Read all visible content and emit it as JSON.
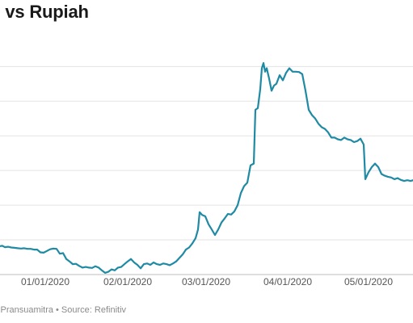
{
  "title": "S vs Rupiah",
  "footer": "s Pransuamitra • Source: Refinitiv",
  "colors": {
    "line": "#1f8aa3",
    "grid": "#e3e3e3",
    "baseline": "#bdbdbd"
  },
  "chart_data": {
    "type": "line",
    "title": "S vs Rupiah",
    "xlabel": "",
    "ylabel": "",
    "grid": true,
    "x_ticks": [
      "01/01/2020",
      "02/01/2020",
      "03/01/2020",
      "04/01/2020",
      "05/01/2020"
    ],
    "ylim": [
      0,
      6.8
    ],
    "series": [
      {
        "values": [
          [
            -10,
            0.85
          ],
          [
            0,
            0.82
          ],
          [
            3,
            0.83
          ],
          [
            6,
            0.79
          ],
          [
            10,
            0.8
          ],
          [
            14,
            0.78
          ],
          [
            18,
            0.77
          ],
          [
            22,
            0.76
          ],
          [
            26,
            0.75
          ],
          [
            30,
            0.76
          ],
          [
            34,
            0.74
          ],
          [
            38,
            0.74
          ],
          [
            42,
            0.72
          ],
          [
            46,
            0.72
          ],
          [
            50,
            0.64
          ],
          [
            54,
            0.63
          ],
          [
            58,
            0.68
          ],
          [
            62,
            0.73
          ],
          [
            66,
            0.75
          ],
          [
            70,
            0.74
          ],
          [
            74,
            0.6
          ],
          [
            78,
            0.62
          ],
          [
            82,
            0.45
          ],
          [
            86,
            0.38
          ],
          [
            90,
            0.3
          ],
          [
            94,
            0.31
          ],
          [
            98,
            0.25
          ],
          [
            102,
            0.2
          ],
          [
            106,
            0.22
          ],
          [
            110,
            0.2
          ],
          [
            114,
            0.19
          ],
          [
            118,
            0.24
          ],
          [
            122,
            0.2
          ],
          [
            126,
            0.12
          ],
          [
            130,
            0.05
          ],
          [
            134,
            0.08
          ],
          [
            138,
            0.15
          ],
          [
            142,
            0.12
          ],
          [
            146,
            0.2
          ],
          [
            150,
            0.22
          ],
          [
            154,
            0.3
          ],
          [
            158,
            0.38
          ],
          [
            162,
            0.45
          ],
          [
            166,
            0.35
          ],
          [
            170,
            0.28
          ],
          [
            174,
            0.18
          ],
          [
            178,
            0.3
          ],
          [
            182,
            0.32
          ],
          [
            186,
            0.28
          ],
          [
            190,
            0.35
          ],
          [
            194,
            0.3
          ],
          [
            198,
            0.28
          ],
          [
            202,
            0.32
          ],
          [
            206,
            0.3
          ],
          [
            210,
            0.27
          ],
          [
            214,
            0.32
          ],
          [
            218,
            0.38
          ],
          [
            222,
            0.48
          ],
          [
            226,
            0.58
          ],
          [
            230,
            0.72
          ],
          [
            234,
            0.78
          ],
          [
            238,
            0.9
          ],
          [
            242,
            1.05
          ],
          [
            245,
            1.3
          ],
          [
            247,
            1.8
          ],
          [
            250,
            1.72
          ],
          [
            254,
            1.68
          ],
          [
            258,
            1.45
          ],
          [
            262,
            1.3
          ],
          [
            266,
            1.14
          ],
          [
            270,
            1.3
          ],
          [
            274,
            1.5
          ],
          [
            278,
            1.62
          ],
          [
            282,
            1.75
          ],
          [
            286,
            1.73
          ],
          [
            290,
            1.82
          ],
          [
            294,
            2.0
          ],
          [
            298,
            2.35
          ],
          [
            302,
            2.55
          ],
          [
            306,
            2.65
          ],
          [
            310,
            3.15
          ],
          [
            314,
            3.2
          ],
          [
            316,
            4.75
          ],
          [
            319,
            4.8
          ],
          [
            322,
            5.35
          ],
          [
            324,
            5.95
          ],
          [
            326,
            6.1
          ],
          [
            328,
            5.85
          ],
          [
            330,
            5.95
          ],
          [
            333,
            5.65
          ],
          [
            336,
            5.3
          ],
          [
            339,
            5.45
          ],
          [
            342,
            5.5
          ],
          [
            346,
            5.75
          ],
          [
            350,
            5.6
          ],
          [
            354,
            5.82
          ],
          [
            358,
            5.95
          ],
          [
            362,
            5.85
          ],
          [
            366,
            5.85
          ],
          [
            370,
            5.84
          ],
          [
            374,
            5.78
          ],
          [
            378,
            5.3
          ],
          [
            382,
            4.75
          ],
          [
            386,
            4.6
          ],
          [
            390,
            4.5
          ],
          [
            394,
            4.35
          ],
          [
            398,
            4.25
          ],
          [
            402,
            4.2
          ],
          [
            406,
            4.1
          ],
          [
            410,
            3.95
          ],
          [
            414,
            3.95
          ],
          [
            418,
            3.9
          ],
          [
            422,
            3.88
          ],
          [
            426,
            3.95
          ],
          [
            430,
            3.9
          ],
          [
            434,
            3.88
          ],
          [
            438,
            3.82
          ],
          [
            442,
            3.85
          ],
          [
            446,
            3.92
          ],
          [
            450,
            3.75
          ],
          [
            452,
            2.75
          ],
          [
            456,
            2.95
          ],
          [
            460,
            3.1
          ],
          [
            464,
            3.2
          ],
          [
            468,
            3.1
          ],
          [
            472,
            2.9
          ],
          [
            476,
            2.85
          ],
          [
            480,
            2.82
          ],
          [
            484,
            2.8
          ],
          [
            488,
            2.75
          ],
          [
            492,
            2.78
          ],
          [
            496,
            2.73
          ],
          [
            500,
            2.7
          ],
          [
            504,
            2.72
          ],
          [
            508,
            2.7
          ],
          [
            511,
            2.72
          ]
        ]
      }
    ]
  }
}
